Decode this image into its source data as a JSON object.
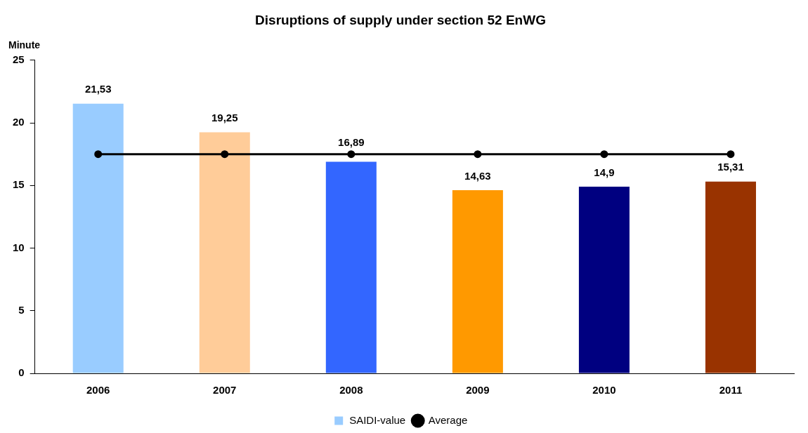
{
  "chart_data": {
    "type": "bar",
    "title": "Disruptions of supply under section 52 EnWG",
    "ylabel": "Minute",
    "categories": [
      "2006",
      "2007",
      "2008",
      "2009",
      "2010",
      "2011"
    ],
    "series": [
      {
        "name": "SAIDI-value",
        "color": "#99ccff",
        "colors": [
          "#99ccff",
          "#ffcc99",
          "#3366ff",
          "#ff9900",
          "#000080",
          "#993300"
        ],
        "values": [
          21.53,
          19.25,
          16.89,
          14.63,
          14.9,
          15.31
        ],
        "value_labels": [
          "21,53",
          "19,25",
          "16,89",
          "14,63",
          "14,9",
          "15,31"
        ]
      },
      {
        "name": "Average",
        "type": "line",
        "color": "#000000",
        "values": [
          17.5,
          17.5,
          17.5,
          17.5,
          17.5,
          17.5
        ],
        "marker": "circle",
        "line_style": "solid"
      }
    ],
    "ylim": [
      0,
      25
    ],
    "yticks": [
      0,
      5,
      10,
      15,
      20,
      25
    ],
    "grid": false,
    "legend": "bottom"
  }
}
